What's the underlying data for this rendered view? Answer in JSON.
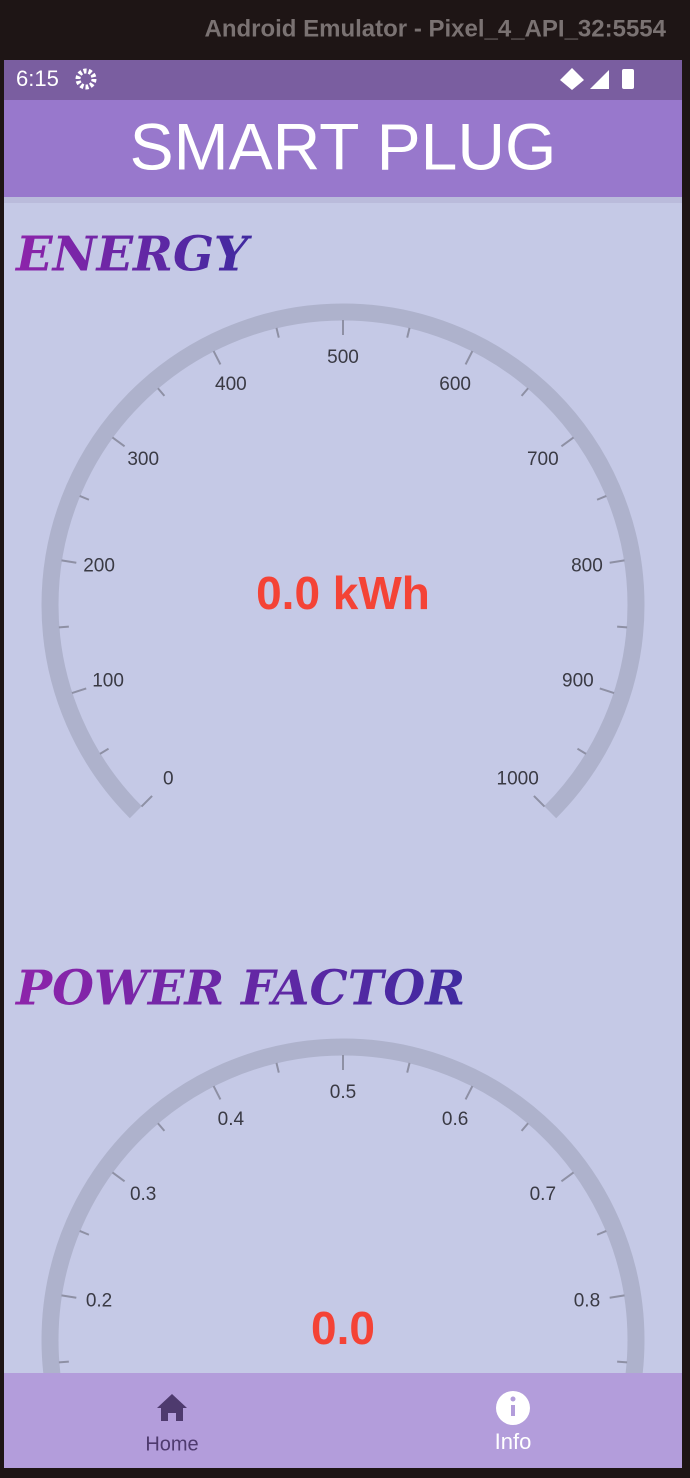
{
  "window": {
    "title": "Android Emulator - Pixel_4_API_32:5554"
  },
  "status_bar": {
    "time": "6:15"
  },
  "app_bar": {
    "title": "SMART PLUG"
  },
  "energy": {
    "title": "ENERGY",
    "tick_labels": [
      "0",
      "100",
      "200",
      "300",
      "400",
      "500",
      "600",
      "700",
      "800",
      "900",
      "1000"
    ],
    "readout": "0.0 kWh"
  },
  "power_factor": {
    "title": "POWER FACTOR",
    "tick_labels": [
      "0.2",
      "0.3",
      "0.4",
      "0.5",
      "0.6",
      "0.7",
      "0.8"
    ],
    "readout": "0.0"
  },
  "nav": {
    "items": [
      "Home",
      "Info"
    ]
  }
}
